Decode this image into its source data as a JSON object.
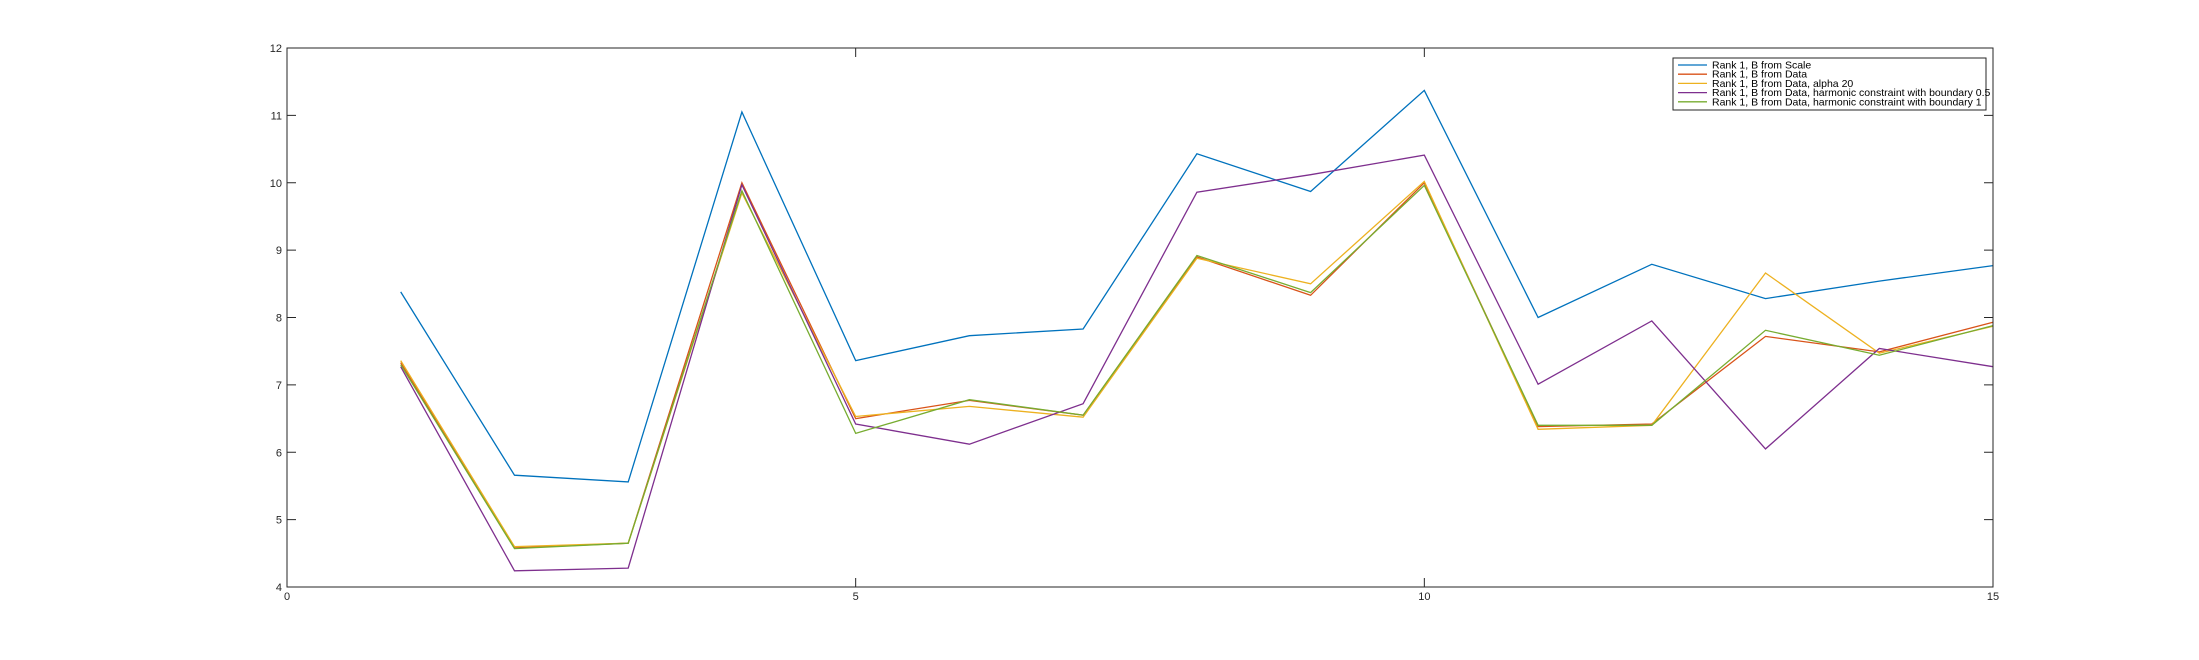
{
  "chart_data": {
    "type": "line",
    "title": "",
    "xlabel": "",
    "ylabel": "",
    "xlim": [
      0,
      15
    ],
    "ylim": [
      4,
      12
    ],
    "xticks": [
      0,
      5,
      10,
      15
    ],
    "yticks": [
      4,
      5,
      6,
      7,
      8,
      9,
      10,
      11,
      12
    ],
    "grid": false,
    "legend_position": "top-right",
    "x": [
      1,
      2,
      3,
      4,
      5,
      6,
      7,
      8,
      9,
      10,
      11,
      12,
      13,
      14,
      15
    ],
    "series": [
      {
        "name": "Rank 1, B from Scale",
        "color": "#0072BD",
        "values": [
          8.38,
          5.66,
          5.56,
          11.05,
          7.36,
          7.73,
          7.83,
          10.43,
          9.87,
          11.37,
          8.0,
          8.79,
          8.28,
          8.54,
          8.77
        ]
      },
      {
        "name": "Rank 1, B from Data",
        "color": "#D95319",
        "values": [
          7.33,
          4.58,
          4.65,
          10.0,
          6.5,
          6.77,
          6.55,
          8.9,
          8.33,
          10.0,
          6.38,
          6.42,
          7.72,
          7.49,
          7.93
        ]
      },
      {
        "name": "Rank 1, B from Data, alpha 20",
        "color": "#EDB120",
        "values": [
          7.36,
          4.6,
          4.65,
          9.85,
          6.53,
          6.68,
          6.52,
          8.88,
          8.5,
          10.02,
          6.34,
          6.4,
          8.66,
          7.47,
          7.87
        ]
      },
      {
        "name": "Rank 1, B from Data, harmonic constraint with boundary 0.5",
        "color": "#7E2F8E",
        "values": [
          7.27,
          4.24,
          4.28,
          9.97,
          6.42,
          6.12,
          6.72,
          9.86,
          10.12,
          10.41,
          7.01,
          7.95,
          6.05,
          7.54,
          7.27
        ]
      },
      {
        "name": "Rank 1, B from Data, harmonic constraint with boundary 1",
        "color": "#77AC30",
        "values": [
          7.3,
          4.57,
          4.65,
          9.88,
          6.28,
          6.78,
          6.55,
          8.92,
          8.37,
          9.96,
          6.4,
          6.4,
          7.81,
          7.44,
          7.88
        ]
      }
    ]
  }
}
